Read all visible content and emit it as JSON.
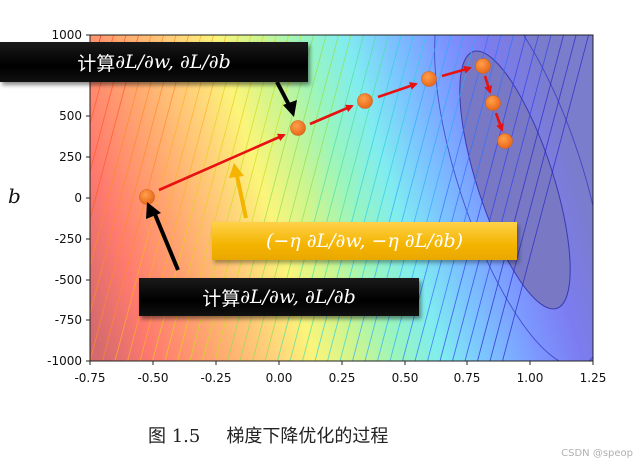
{
  "chart_data": {
    "type": "contour",
    "title": "",
    "xlabel": "",
    "ylabel": "b",
    "xlim": [
      -0.75,
      1.25
    ],
    "ylim": [
      -1000,
      1000
    ],
    "xticks": [
      "-0.75",
      "-0.50",
      "-0.25",
      "0.00",
      "0.25",
      "0.50",
      "0.75",
      "1.00",
      "1.25"
    ],
    "yticks": [
      "1000",
      "750",
      "500",
      "250",
      "0",
      "-250",
      "-500",
      "-750",
      "-1000"
    ],
    "colormap": "jet (semi-transparent), red at high loss, dark blue at minimum",
    "series": [
      {
        "name": "gradient descent path",
        "type": "line+markers",
        "marker_color": "#f07a1e",
        "arrow_color": "#e81010",
        "points": [
          {
            "w": -0.52,
            "b": 0
          },
          {
            "w": 0.08,
            "b": 425
          },
          {
            "w": 0.35,
            "b": 590
          },
          {
            "w": 0.6,
            "b": 725
          },
          {
            "w": 0.82,
            "b": 805
          },
          {
            "w": 0.86,
            "b": 580
          },
          {
            "w": 0.91,
            "b": 350
          }
        ]
      }
    ],
    "annotations": [
      {
        "text": "计算 ∂L/∂w, ∂L/∂b",
        "style": "black box",
        "points_to": "point 0"
      },
      {
        "text": "计算 ∂L/∂w, ∂L/∂b",
        "style": "black box",
        "points_to": "point 1"
      },
      {
        "text": "(−η ∂L/∂w, −η ∂L/∂b)",
        "style": "gold box",
        "points_to": "first update arrow"
      }
    ],
    "grid": false,
    "legend": null
  },
  "figure": {
    "ylabel": "b",
    "callouts": {
      "top_prefix": "计算 ",
      "top_math": "∂L/∂w, ∂L/∂b",
      "bottom_prefix": "计算 ",
      "bottom_math": "∂L/∂w, ∂L/∂b",
      "update_math": "(−η ∂L/∂w, −η ∂L/∂b)"
    },
    "caption_number": "图 1.5",
    "caption_text": "梯度下降优化的过程",
    "watermark": "CSDN @speop"
  },
  "colors": {
    "marker": "#f07a1e",
    "arrow": "#e81010",
    "callout_black": "#000000",
    "callout_gold": "#f4b400",
    "pointer_black": "#000000",
    "pointer_gold": "#f4b400"
  }
}
